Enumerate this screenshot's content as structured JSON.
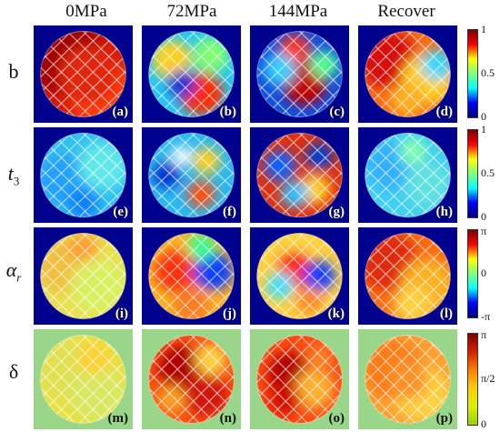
{
  "columns": [
    "0MPa",
    "72MPa",
    "144MPa",
    "Recover"
  ],
  "rows": [
    {
      "label": "b",
      "italic": false,
      "sub": "",
      "ticks": [
        "1",
        "0.5",
        "0"
      ],
      "panels": [
        "(a)",
        "(b)",
        "(c)",
        "(d)"
      ]
    },
    {
      "label": "t",
      "italic": true,
      "sub": "3",
      "ticks": [
        "1",
        "0.5",
        "0"
      ],
      "panels": [
        "(e)",
        "(f)",
        "(g)",
        "(h)"
      ]
    },
    {
      "label": "α",
      "italic": true,
      "sub": "r",
      "ticks": [
        "π",
        "0",
        "-π"
      ],
      "panels": [
        "(i)",
        "(j)",
        "(k)",
        "(l)"
      ]
    },
    {
      "label": "δ",
      "italic": false,
      "sub": "",
      "ticks": [
        "π",
        "π/2",
        "0"
      ],
      "panels": [
        "(m)",
        "(n)",
        "(o)",
        "(p)"
      ]
    }
  ],
  "colors": {
    "jet_background": "#00008f",
    "light_background": "#9ad68a",
    "jet_low": "#00007f",
    "jet_mid": "#7fff7f",
    "jet_high": "#7f0000"
  }
}
